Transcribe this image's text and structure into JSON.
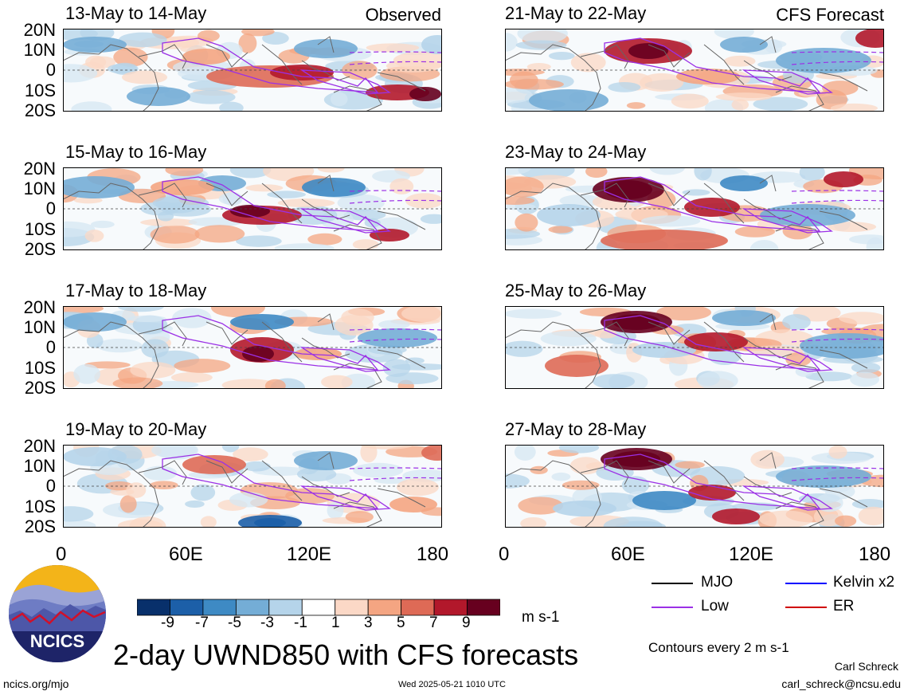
{
  "header": {
    "observed_label": "Observed",
    "forecast_label": "CFS Forecast"
  },
  "panels_left": [
    {
      "title": "13-May to 14-May"
    },
    {
      "title": "15-May to 16-May"
    },
    {
      "title": "17-May to 18-May"
    },
    {
      "title": "19-May to 20-May"
    }
  ],
  "panels_right": [
    {
      "title": "21-May to 22-May"
    },
    {
      "title": "23-May to 24-May"
    },
    {
      "title": "25-May to 26-May"
    },
    {
      "title": "27-May to 28-May"
    }
  ],
  "axes": {
    "lat_labels": [
      "20N",
      "10N",
      "0",
      "10S",
      "20S"
    ],
    "lon_labels": [
      "0",
      "60E",
      "120E",
      "180"
    ]
  },
  "colorbar": {
    "ticks": [
      "-9",
      "-7",
      "-5",
      "-3",
      "-1",
      "1",
      "3",
      "5",
      "7",
      "9"
    ],
    "unit": "m s-1",
    "colors": [
      "#08306b",
      "#1c5fa8",
      "#3e8ac4",
      "#74add6",
      "#b5d4ea",
      "#ffffff",
      "#fbd8c6",
      "#f4a582",
      "#de6a56",
      "#b2182b",
      "#67001f"
    ]
  },
  "legend": {
    "items": [
      {
        "label": "MJO",
        "color": "#000000"
      },
      {
        "label": "Kelvin x2",
        "color": "#0000ff"
      },
      {
        "label": "Low",
        "color": "#9b30e6"
      },
      {
        "label": "ER",
        "color": "#d00000"
      }
    ],
    "contours_note": "Contours every 2 m s-1"
  },
  "footer": {
    "title": "2-day UWND850 with CFS forecasts",
    "logo_text": "NCICS",
    "url": "ncics.org/mjo",
    "timestamp": "Wed 2025-05-21 1010 UTC",
    "author": "Carl Schreck",
    "email": "carl_schreck@ncsu.edu"
  }
}
